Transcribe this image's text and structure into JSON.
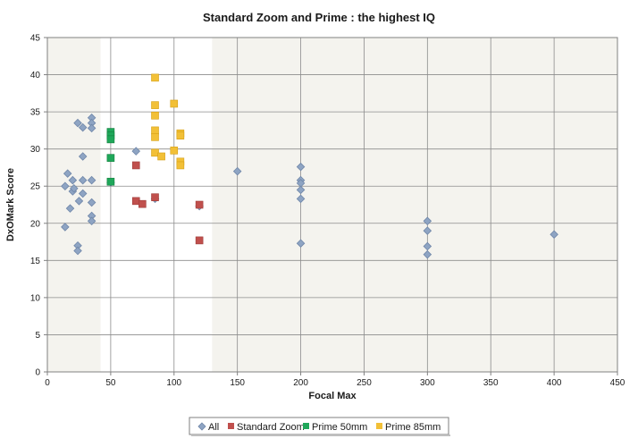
{
  "chart_data": {
    "type": "scatter",
    "title": "Standard Zoom and Prime : the highest IQ",
    "xlabel": "Focal Max",
    "ylabel": "DxOMark Score",
    "xlim": [
      0,
      450
    ],
    "ylim": [
      0,
      45
    ],
    "xticks": [
      0,
      50,
      100,
      150,
      200,
      250,
      300,
      350,
      400,
      450
    ],
    "yticks": [
      0,
      5,
      10,
      15,
      20,
      25,
      30,
      35,
      40,
      45
    ],
    "grid": "horizontal and vertical major gridlines",
    "shaded_x_ranges": [
      [
        0,
        42
      ],
      [
        130,
        450
      ]
    ],
    "legend_position": "bottom",
    "series": [
      {
        "name": "All",
        "marker": "diamond",
        "color": "#8EA4C3",
        "points": [
          [
            14,
            19.5
          ],
          [
            14,
            25
          ],
          [
            16,
            26.7
          ],
          [
            18,
            22
          ],
          [
            20,
            25.8
          ],
          [
            20,
            24.3
          ],
          [
            21,
            24.7
          ],
          [
            24,
            33.5
          ],
          [
            24,
            17
          ],
          [
            24,
            16.3
          ],
          [
            25,
            23
          ],
          [
            28,
            29
          ],
          [
            28,
            32.9
          ],
          [
            28,
            24
          ],
          [
            28,
            25.8
          ],
          [
            35,
            34.2
          ],
          [
            35,
            33.5
          ],
          [
            35,
            32.8
          ],
          [
            35,
            25.8
          ],
          [
            35,
            22.8
          ],
          [
            35,
            21
          ],
          [
            35,
            20.3
          ],
          [
            50,
            25.5
          ],
          [
            70,
            29.7
          ],
          [
            85,
            23.3
          ],
          [
            120,
            22.3
          ],
          [
            150,
            27
          ],
          [
            200,
            27.6
          ],
          [
            200,
            25.8
          ],
          [
            200,
            25.4
          ],
          [
            200,
            24.5
          ],
          [
            200,
            23.3
          ],
          [
            200,
            17.3
          ],
          [
            300,
            20.3
          ],
          [
            300,
            19
          ],
          [
            300,
            16.9
          ],
          [
            300,
            15.8
          ],
          [
            400,
            18.5
          ]
        ]
      },
      {
        "name": "Standard Zoom",
        "marker": "square",
        "color": "#C0504D",
        "points": [
          [
            70,
            27.8
          ],
          [
            70,
            23
          ],
          [
            75,
            22.6
          ],
          [
            85,
            23.5
          ],
          [
            120,
            22.5
          ],
          [
            120,
            17.7
          ]
        ]
      },
      {
        "name": "Prime 50mm",
        "marker": "square",
        "color": "#1FA75A",
        "points": [
          [
            50,
            32.3
          ],
          [
            50,
            31.8
          ],
          [
            50,
            31.3
          ],
          [
            50,
            28.8
          ],
          [
            50,
            25.6
          ]
        ]
      },
      {
        "name": "Prime 85mm",
        "marker": "square",
        "color": "#F2C037",
        "points": [
          [
            85,
            39.6
          ],
          [
            85,
            35.9
          ],
          [
            85,
            34.5
          ],
          [
            85,
            32.5
          ],
          [
            85,
            31.6
          ],
          [
            85,
            29.5
          ],
          [
            90,
            29
          ],
          [
            100,
            36.1
          ],
          [
            100,
            29.8
          ],
          [
            105,
            32.1
          ],
          [
            105,
            31.8
          ],
          [
            105,
            28.3
          ],
          [
            105,
            27.8
          ]
        ]
      }
    ]
  }
}
